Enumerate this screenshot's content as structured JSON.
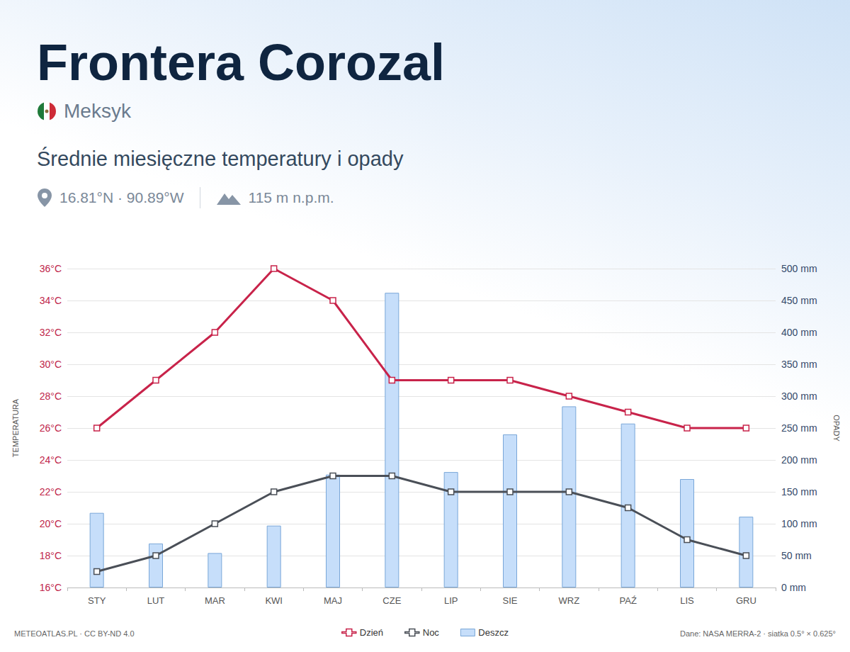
{
  "chart_data": {
    "type": "bar",
    "title": "Frontera Corozal",
    "subtitle": "Średnie miesięczne temperatury i opady",
    "annotations": {
      "country": "Meksyk",
      "coordinates": "16.81°N · 90.89°W",
      "elevation": "115 m n.p.m.",
      "source_left": "METEOATLAS.PL · CC BY-ND 4.0",
      "source_right": "Dane: NASA MERRA-2 · siatka 0.5° × 0.625°"
    },
    "ylabel": "TEMPERATURA",
    "y2label": "OPADY",
    "categories": [
      "STY",
      "LUT",
      "MAR",
      "KWI",
      "MAJ",
      "CZE",
      "LIP",
      "SIE",
      "WRZ",
      "PAŹ",
      "LIS",
      "GRU"
    ],
    "series": [
      {
        "name": "Dzień",
        "type": "line",
        "color": "#c8234a",
        "marker": "square",
        "values": [
          26,
          29,
          32,
          36,
          34,
          29,
          29,
          29,
          28,
          27,
          26,
          26
        ]
      },
      {
        "name": "Noc",
        "type": "line",
        "color": "#4a4f57",
        "marker": "square",
        "values": [
          17,
          18,
          20,
          22,
          23,
          23,
          22,
          22,
          22,
          21,
          19,
          18
        ]
      },
      {
        "name": "Deszcz",
        "type": "bar",
        "color": "#c6defa",
        "axis": "y2",
        "values": [
          117,
          69,
          54,
          97,
          177,
          462,
          181,
          240,
          284,
          257,
          170,
          111
        ]
      }
    ],
    "ylim": [
      16,
      36
    ],
    "yticks": [
      {
        "value": 16,
        "label": "16°C"
      },
      {
        "value": 18,
        "label": "18°C"
      },
      {
        "value": 20,
        "label": "20°C"
      },
      {
        "value": 22,
        "label": "22°C"
      },
      {
        "value": 24,
        "label": "24°C"
      },
      {
        "value": 26,
        "label": "26°C"
      },
      {
        "value": 28,
        "label": "28°C"
      },
      {
        "value": 30,
        "label": "30°C"
      },
      {
        "value": 32,
        "label": "32°C"
      },
      {
        "value": 34,
        "label": "34°C"
      },
      {
        "value": 36,
        "label": "36°C"
      }
    ],
    "y2lim": [
      0,
      500
    ],
    "y2ticks": [
      {
        "value": 0,
        "label": "0 mm"
      },
      {
        "value": 50,
        "label": "50 mm"
      },
      {
        "value": 100,
        "label": "100 mm"
      },
      {
        "value": 150,
        "label": "150 mm"
      },
      {
        "value": 200,
        "label": "200 mm"
      },
      {
        "value": 250,
        "label": "250 mm"
      },
      {
        "value": 300,
        "label": "300 mm"
      },
      {
        "value": 350,
        "label": "350 mm"
      },
      {
        "value": 400,
        "label": "400 mm"
      },
      {
        "value": 450,
        "label": "450 mm"
      },
      {
        "value": 500,
        "label": "500 mm"
      }
    ],
    "grid": true,
    "legend": "bottom"
  }
}
